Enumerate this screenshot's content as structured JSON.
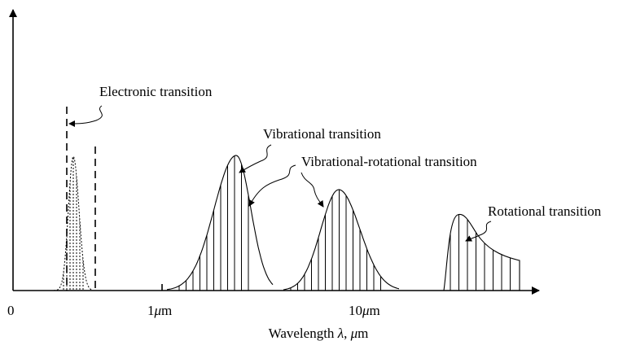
{
  "labels": {
    "electronic": "Electronic transition",
    "vibrational": "Vibrational transition",
    "vib_rot": "Vibrational-rotational transition",
    "rotational": "Rotational transition"
  },
  "axis": {
    "origin": "0",
    "tick_1um_num": "1",
    "tick_10um_num": "10",
    "unit_mu": "μ",
    "unit_m": "m",
    "xlabel_prefix": "Wavelength ",
    "xlabel_lambda": "λ",
    "xlabel_sep": ", ",
    "xlabel_mu": "μ",
    "xlabel_m": "m"
  },
  "colors": {
    "ink": "#000000",
    "background": "#ffffff"
  }
}
